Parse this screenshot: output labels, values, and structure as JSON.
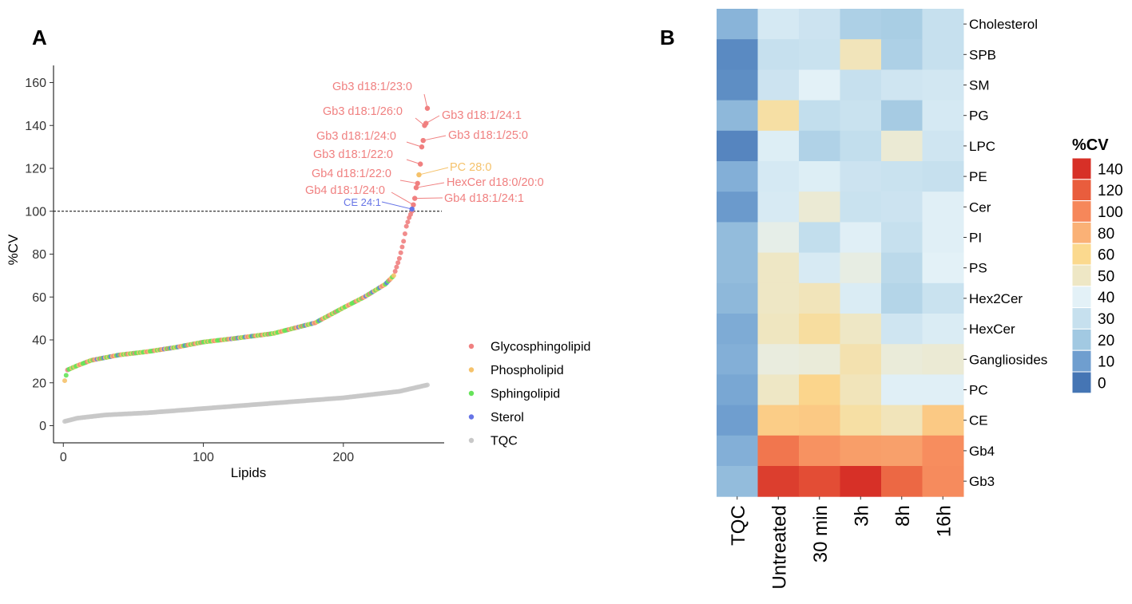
{
  "panel_a_label": "A",
  "panel_b_label": "B",
  "chart_data": [
    {
      "type": "scatter",
      "title": "",
      "xlabel": "Lipids",
      "ylabel": "%CV",
      "xlim": [
        -7,
        272
      ],
      "ylim": [
        -8,
        168
      ],
      "xticks": [
        "0",
        "100",
        "200"
      ],
      "xtick_values": [
        0,
        100,
        200
      ],
      "yticks": [
        "0",
        "20",
        "40",
        "60",
        "80",
        "100",
        "120",
        "140",
        "160"
      ],
      "ytick_values": [
        0,
        20,
        40,
        60,
        80,
        100,
        120,
        140,
        160
      ],
      "threshold": 100,
      "series": [
        {
          "name": "Glycosphingolipid",
          "color": "#F08080"
        },
        {
          "name": "Phospholipid",
          "color": "#F5C26B"
        },
        {
          "name": "Sphingolipid",
          "color": "#66E35A"
        },
        {
          "name": "Sterol",
          "color": "#6674E6"
        },
        {
          "name": "TQC",
          "color": "#C8C8C8"
        }
      ],
      "lipid_curve_knots": [
        [
          1,
          21
        ],
        [
          3,
          26
        ],
        [
          10,
          28
        ],
        [
          20,
          30.5
        ],
        [
          40,
          33
        ],
        [
          60,
          34.5
        ],
        [
          80,
          36.5
        ],
        [
          100,
          39
        ],
        [
          120,
          40.5
        ],
        [
          150,
          43
        ],
        [
          180,
          48
        ],
        [
          200,
          55
        ],
        [
          215,
          60
        ],
        [
          230,
          66
        ],
        [
          236,
          70
        ],
        [
          240,
          78
        ],
        [
          243,
          86
        ],
        [
          245,
          93
        ],
        [
          247,
          97
        ],
        [
          249,
          100
        ]
      ],
      "tqc_curve_knots": [
        [
          1,
          2
        ],
        [
          10,
          3.5
        ],
        [
          30,
          5
        ],
        [
          60,
          6
        ],
        [
          100,
          8
        ],
        [
          150,
          10.5
        ],
        [
          200,
          13
        ],
        [
          240,
          16
        ],
        [
          250,
          17.5
        ],
        [
          260,
          19
        ]
      ],
      "points": [
        {
          "x": 260,
          "y": 148,
          "series": "Glycosphingolipid",
          "label": "Gb3 d18:1/23:0"
        },
        {
          "x": 259,
          "y": 141,
          "series": "Glycosphingolipid",
          "label": "Gb3 d18:1/24:1"
        },
        {
          "x": 258,
          "y": 140,
          "series": "Glycosphingolipid",
          "label": "Gb3 d18:1/26:0"
        },
        {
          "x": 257,
          "y": 133,
          "series": "Glycosphingolipid",
          "label": "Gb3 d18:1/25:0"
        },
        {
          "x": 256,
          "y": 130,
          "series": "Glycosphingolipid",
          "label": "Gb3 d18:1/24:0"
        },
        {
          "x": 255,
          "y": 122,
          "series": "Glycosphingolipid",
          "label": "Gb3 d18:1/22:0"
        },
        {
          "x": 254,
          "y": 117,
          "series": "Phospholipid",
          "label": "PC 28:0"
        },
        {
          "x": 253,
          "y": 113,
          "series": "Glycosphingolipid",
          "label": "Gb4 d18:1/22:0"
        },
        {
          "x": 252,
          "y": 111,
          "series": "Glycosphingolipid",
          "label": "HexCer d18:0/20:0"
        },
        {
          "x": 251,
          "y": 106,
          "series": "Glycosphingolipid",
          "label": "Gb4 d18:1/24:1"
        },
        {
          "x": 250,
          "y": 103,
          "series": "Glycosphingolipid",
          "label": "Gb4 d18:1/24:0"
        },
        {
          "x": 249,
          "y": 101,
          "series": "Sterol",
          "label": "CE 24:1"
        }
      ]
    },
    {
      "type": "heatmap",
      "title": "",
      "colorbar_title": "%CV",
      "colorbar_ticks": [
        "140",
        "120",
        "100",
        "80",
        "60",
        "50",
        "40",
        "30",
        "20",
        "10",
        "0"
      ],
      "colorbar_colors": [
        "#D73027",
        "#E95D3D",
        "#F6875A",
        "#FAB176",
        "#FBD98E",
        "#EEE7C5",
        "#E3F1F7",
        "#C6E0EE",
        "#A2C9E2",
        "#6F9ECF",
        "#4575B4"
      ],
      "columns": [
        "TQC",
        "Untreated",
        "30 min",
        "3h",
        "8h",
        "16h"
      ],
      "rows": [
        "Cholesterol",
        "SPB",
        "SM",
        "PG",
        "LPC",
        "PE",
        "Cer",
        "PI",
        "PS",
        "Hex2Cer",
        "HexCer",
        "Gangliosides",
        "PC",
        "CE",
        "Gb4",
        "Gb3"
      ],
      "values": [
        [
          15,
          35,
          32,
          23,
          22,
          30
        ],
        [
          5,
          30,
          31,
          52,
          23,
          30
        ],
        [
          6,
          32,
          40,
          30,
          33,
          34
        ],
        [
          16,
          56,
          29,
          31,
          21,
          35
        ],
        [
          4,
          38,
          24,
          29,
          47,
          33
        ],
        [
          14,
          35,
          38,
          32,
          31,
          30
        ],
        [
          9,
          36,
          47,
          31,
          32,
          39
        ],
        [
          17,
          43,
          29,
          39,
          30,
          39
        ],
        [
          17,
          50,
          36,
          44,
          27,
          40
        ],
        [
          16,
          50,
          52,
          37,
          25,
          31
        ],
        [
          13,
          51,
          57,
          50,
          33,
          37
        ],
        [
          14,
          45,
          46,
          54,
          46,
          47
        ],
        [
          12,
          50,
          62,
          52,
          39,
          39
        ],
        [
          10,
          66,
          68,
          56,
          52,
          68
        ],
        [
          14,
          108,
          95,
          89,
          88,
          97
        ],
        [
          17,
          134,
          127,
          145,
          115,
          98
        ]
      ]
    }
  ]
}
